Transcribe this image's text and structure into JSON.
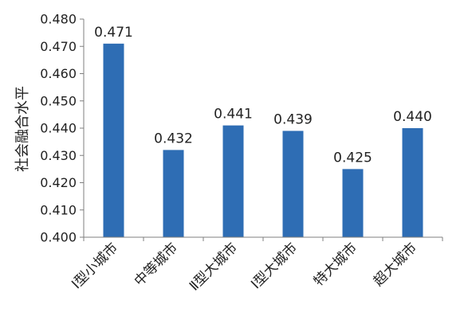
{
  "chart_data": {
    "type": "bar",
    "categories": [
      "Ⅰ型小城市",
      "中等城市",
      "Ⅱ型大城市",
      "Ⅰ型大城市",
      "特大城市",
      "超大城市"
    ],
    "values": [
      0.471,
      0.432,
      0.441,
      0.439,
      0.425,
      0.44
    ],
    "value_labels": [
      "0.471",
      "0.432",
      "0.441",
      "0.439",
      "0.425",
      "0.440"
    ],
    "title": "",
    "xlabel": "",
    "ylabel": "社会融合水平",
    "ylim": [
      0.4,
      0.48
    ],
    "yticks": [
      0.4,
      0.41,
      0.42,
      0.43,
      0.44,
      0.45,
      0.46,
      0.47,
      0.48
    ],
    "ytick_labels": [
      "0.400",
      "0.410",
      "0.420",
      "0.430",
      "0.440",
      "0.450",
      "0.460",
      "0.470",
      "0.480"
    ],
    "grid": false,
    "legend": "none",
    "bar_color": "#2E6DB4",
    "axis_color": "#7f7f7f"
  }
}
